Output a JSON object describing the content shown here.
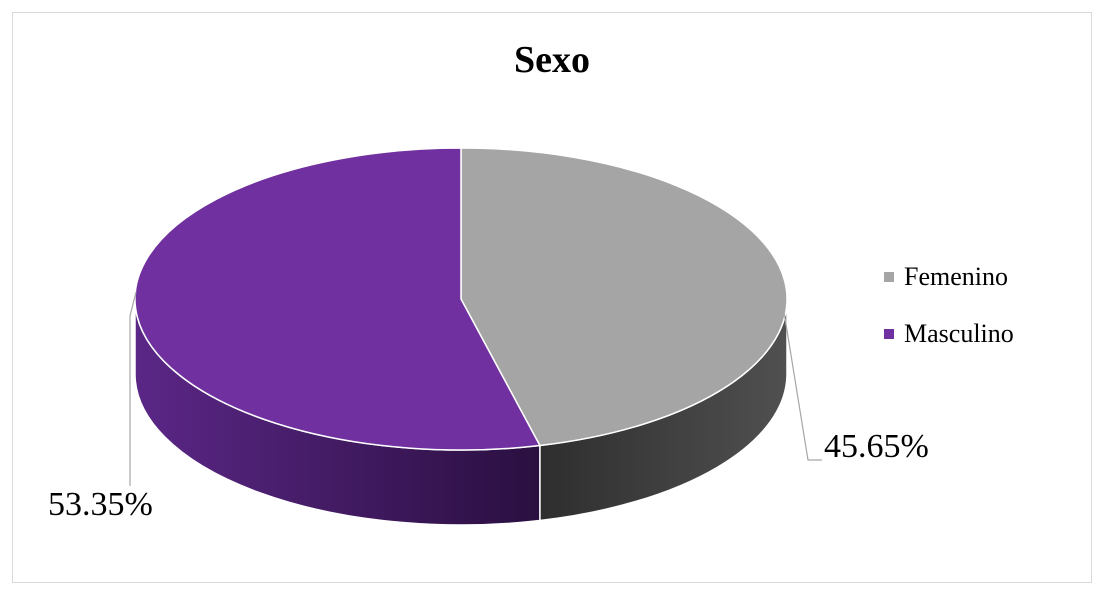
{
  "chart_data": {
    "type": "pie",
    "title": "Sexo",
    "categories": [
      "Femenino",
      "Masculino"
    ],
    "values": [
      45.65,
      53.35
    ],
    "data_labels": [
      "45.65%",
      "53.35%"
    ],
    "colors": [
      "#a5a5a5",
      "#7030a0"
    ],
    "side_colors": [
      "#474747",
      "#4a1f6e"
    ],
    "legend_position": "right",
    "style": "3d"
  }
}
